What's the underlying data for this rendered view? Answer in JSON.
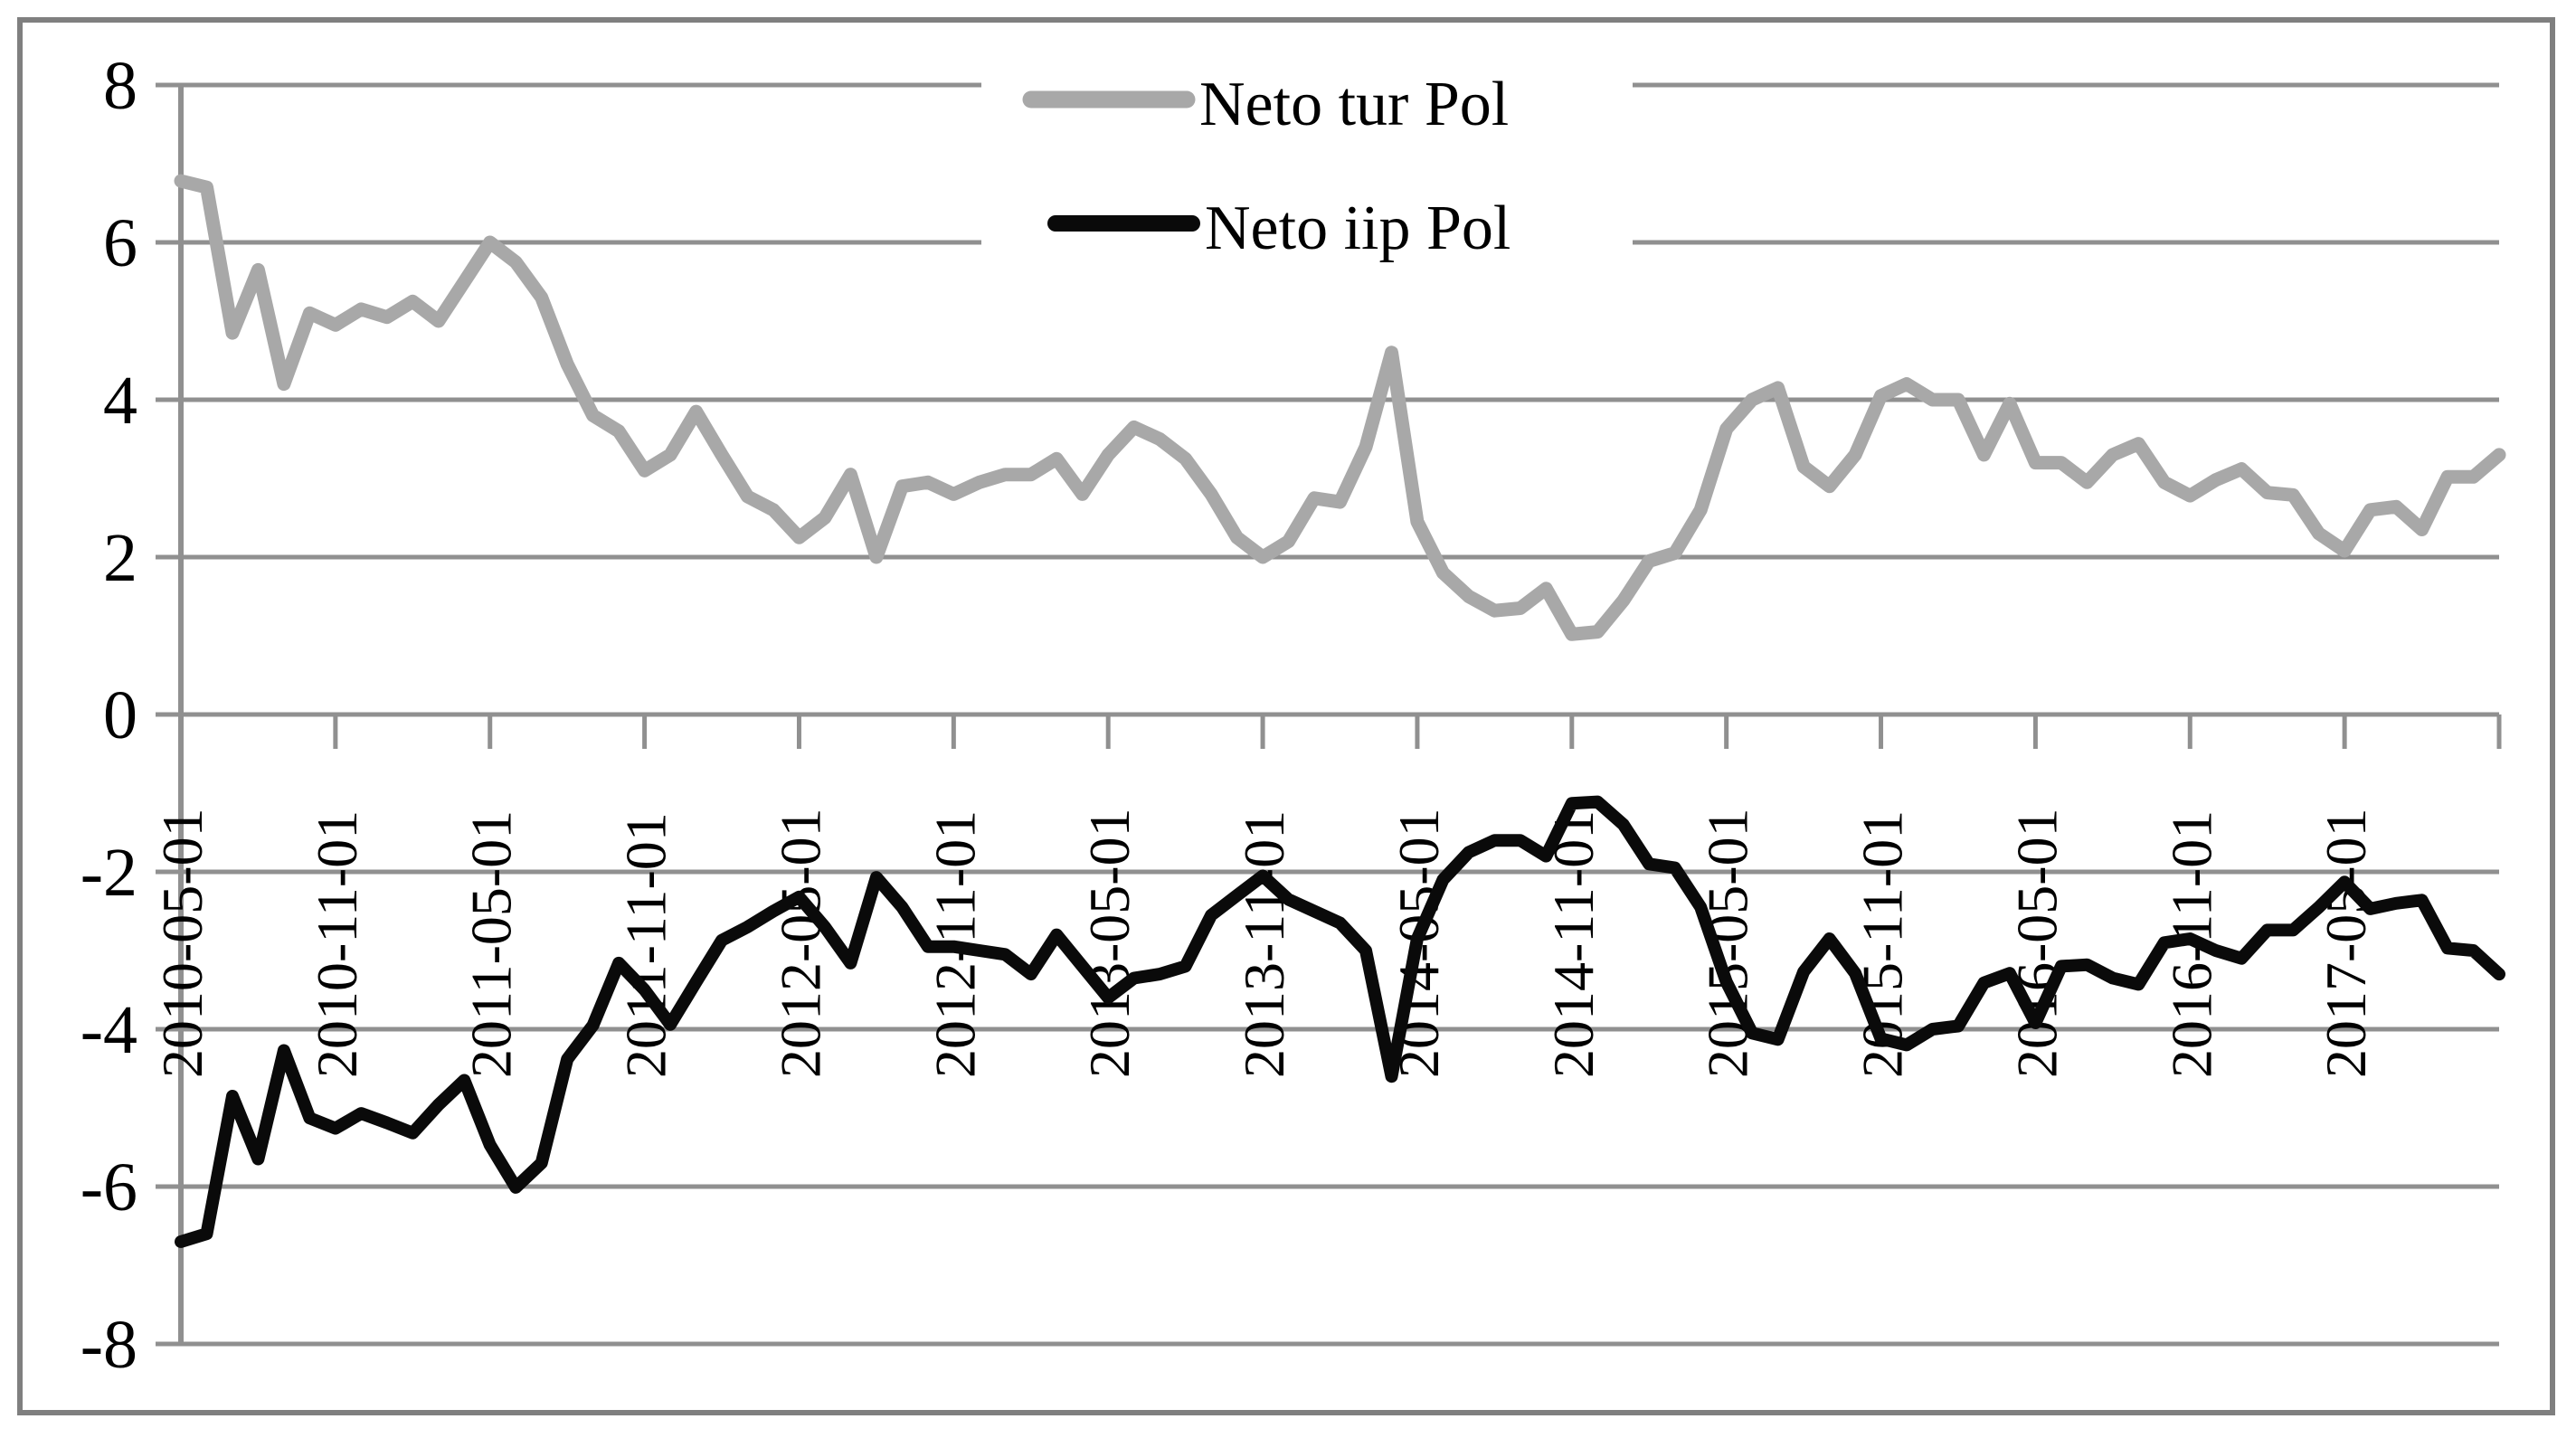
{
  "chart_data": {
    "type": "line",
    "title": "",
    "xlabel": "",
    "ylabel": "",
    "x_start": "2010-05-01",
    "x_step_months": 1,
    "x_tick_interval_months": 6,
    "x_tick_labels": [
      "2010-05-01",
      "2010-11-01",
      "2011-05-01",
      "2011-11-01",
      "2012-05-01",
      "2012-11-01",
      "2013-05-01",
      "2013-11-01",
      "2014-05-01",
      "2014-11-01",
      "2015-05-01",
      "2015-11-01",
      "2016-05-01",
      "2016-11-01",
      "2017-05-01"
    ],
    "y_ticks": [
      "8",
      "6",
      "4",
      "2",
      "0",
      "-2",
      "-4",
      "-6",
      "-8"
    ],
    "y_tick_values": [
      8,
      6,
      4,
      2,
      0,
      -2,
      -4,
      -6,
      -8
    ],
    "ylim": [
      -8,
      8
    ],
    "grid": "horizontal",
    "legend_position": "top-center-inside",
    "colors": {
      "grid": "#909090",
      "axis": "#909090",
      "border": "#7f7f7f",
      "series_gray": "#a8a8a8",
      "series_black": "#0a0a0a",
      "text": "#000000",
      "legend_background": "#ffffff"
    },
    "series": [
      {
        "name": "Neto tur Pol",
        "color": "#a8a8a8",
        "stroke_width": 15,
        "values": [
          6.78,
          6.7,
          4.85,
          5.65,
          4.2,
          5.1,
          4.95,
          5.15,
          5.05,
          5.25,
          5.0,
          5.5,
          6.0,
          5.75,
          5.3,
          4.45,
          3.8,
          3.6,
          3.1,
          3.3,
          3.85,
          3.3,
          2.77,
          2.6,
          2.25,
          2.5,
          3.05,
          2.0,
          2.9,
          2.95,
          2.8,
          2.95,
          3.05,
          3.05,
          3.25,
          2.8,
          3.3,
          3.65,
          3.5,
          3.25,
          2.8,
          2.25,
          2.0,
          2.2,
          2.75,
          2.7,
          3.4,
          4.6,
          2.45,
          1.8,
          1.5,
          1.32,
          1.35,
          1.6,
          1.02,
          1.05,
          1.45,
          1.95,
          2.05,
          2.6,
          3.63,
          4.0,
          4.15,
          3.15,
          2.9,
          3.3,
          4.05,
          4.2,
          4.0,
          4.0,
          3.3,
          3.95,
          3.2,
          3.2,
          2.95,
          3.3,
          3.44,
          2.95,
          2.78,
          2.98,
          3.12,
          2.82,
          2.79,
          2.3,
          2.08,
          2.6,
          2.64,
          2.35,
          3.02,
          3.02,
          3.3
        ]
      },
      {
        "name": "Neto iip Pol",
        "color": "#0a0a0a",
        "stroke_width": 14,
        "values": [
          -6.7,
          -6.6,
          -4.85,
          -5.65,
          -4.27,
          -5.13,
          -5.26,
          -5.07,
          -5.19,
          -5.32,
          -4.96,
          -4.65,
          -5.47,
          -6.01,
          -5.7,
          -4.38,
          -3.95,
          -3.16,
          -3.5,
          -3.94,
          -3.4,
          -2.87,
          -2.7,
          -2.5,
          -2.32,
          -2.7,
          -3.16,
          -2.07,
          -2.45,
          -2.95,
          -2.95,
          -3.0,
          -3.05,
          -3.3,
          -2.8,
          -3.2,
          -3.6,
          -3.35,
          -3.3,
          -3.2,
          -2.55,
          -2.3,
          -2.05,
          -2.35,
          -2.5,
          -2.65,
          -3.0,
          -4.6,
          -2.85,
          -2.1,
          -1.75,
          -1.6,
          -1.6,
          -1.8,
          -1.13,
          -1.11,
          -1.4,
          -1.9,
          -1.95,
          -2.45,
          -3.4,
          -4.05,
          -4.13,
          -3.27,
          -2.85,
          -3.29,
          -4.12,
          -4.2,
          -4.0,
          -3.96,
          -3.41,
          -3.29,
          -3.92,
          -3.2,
          -3.18,
          -3.35,
          -3.43,
          -2.9,
          -2.85,
          -3.0,
          -3.1,
          -2.74,
          -2.74,
          -2.45,
          -2.13,
          -2.47,
          -2.4,
          -2.36,
          -2.97,
          -3.0,
          -3.3
        ]
      }
    ],
    "legend": [
      {
        "label": "Neto tur Pol"
      },
      {
        "label": "Neto iip Pol"
      }
    ]
  }
}
